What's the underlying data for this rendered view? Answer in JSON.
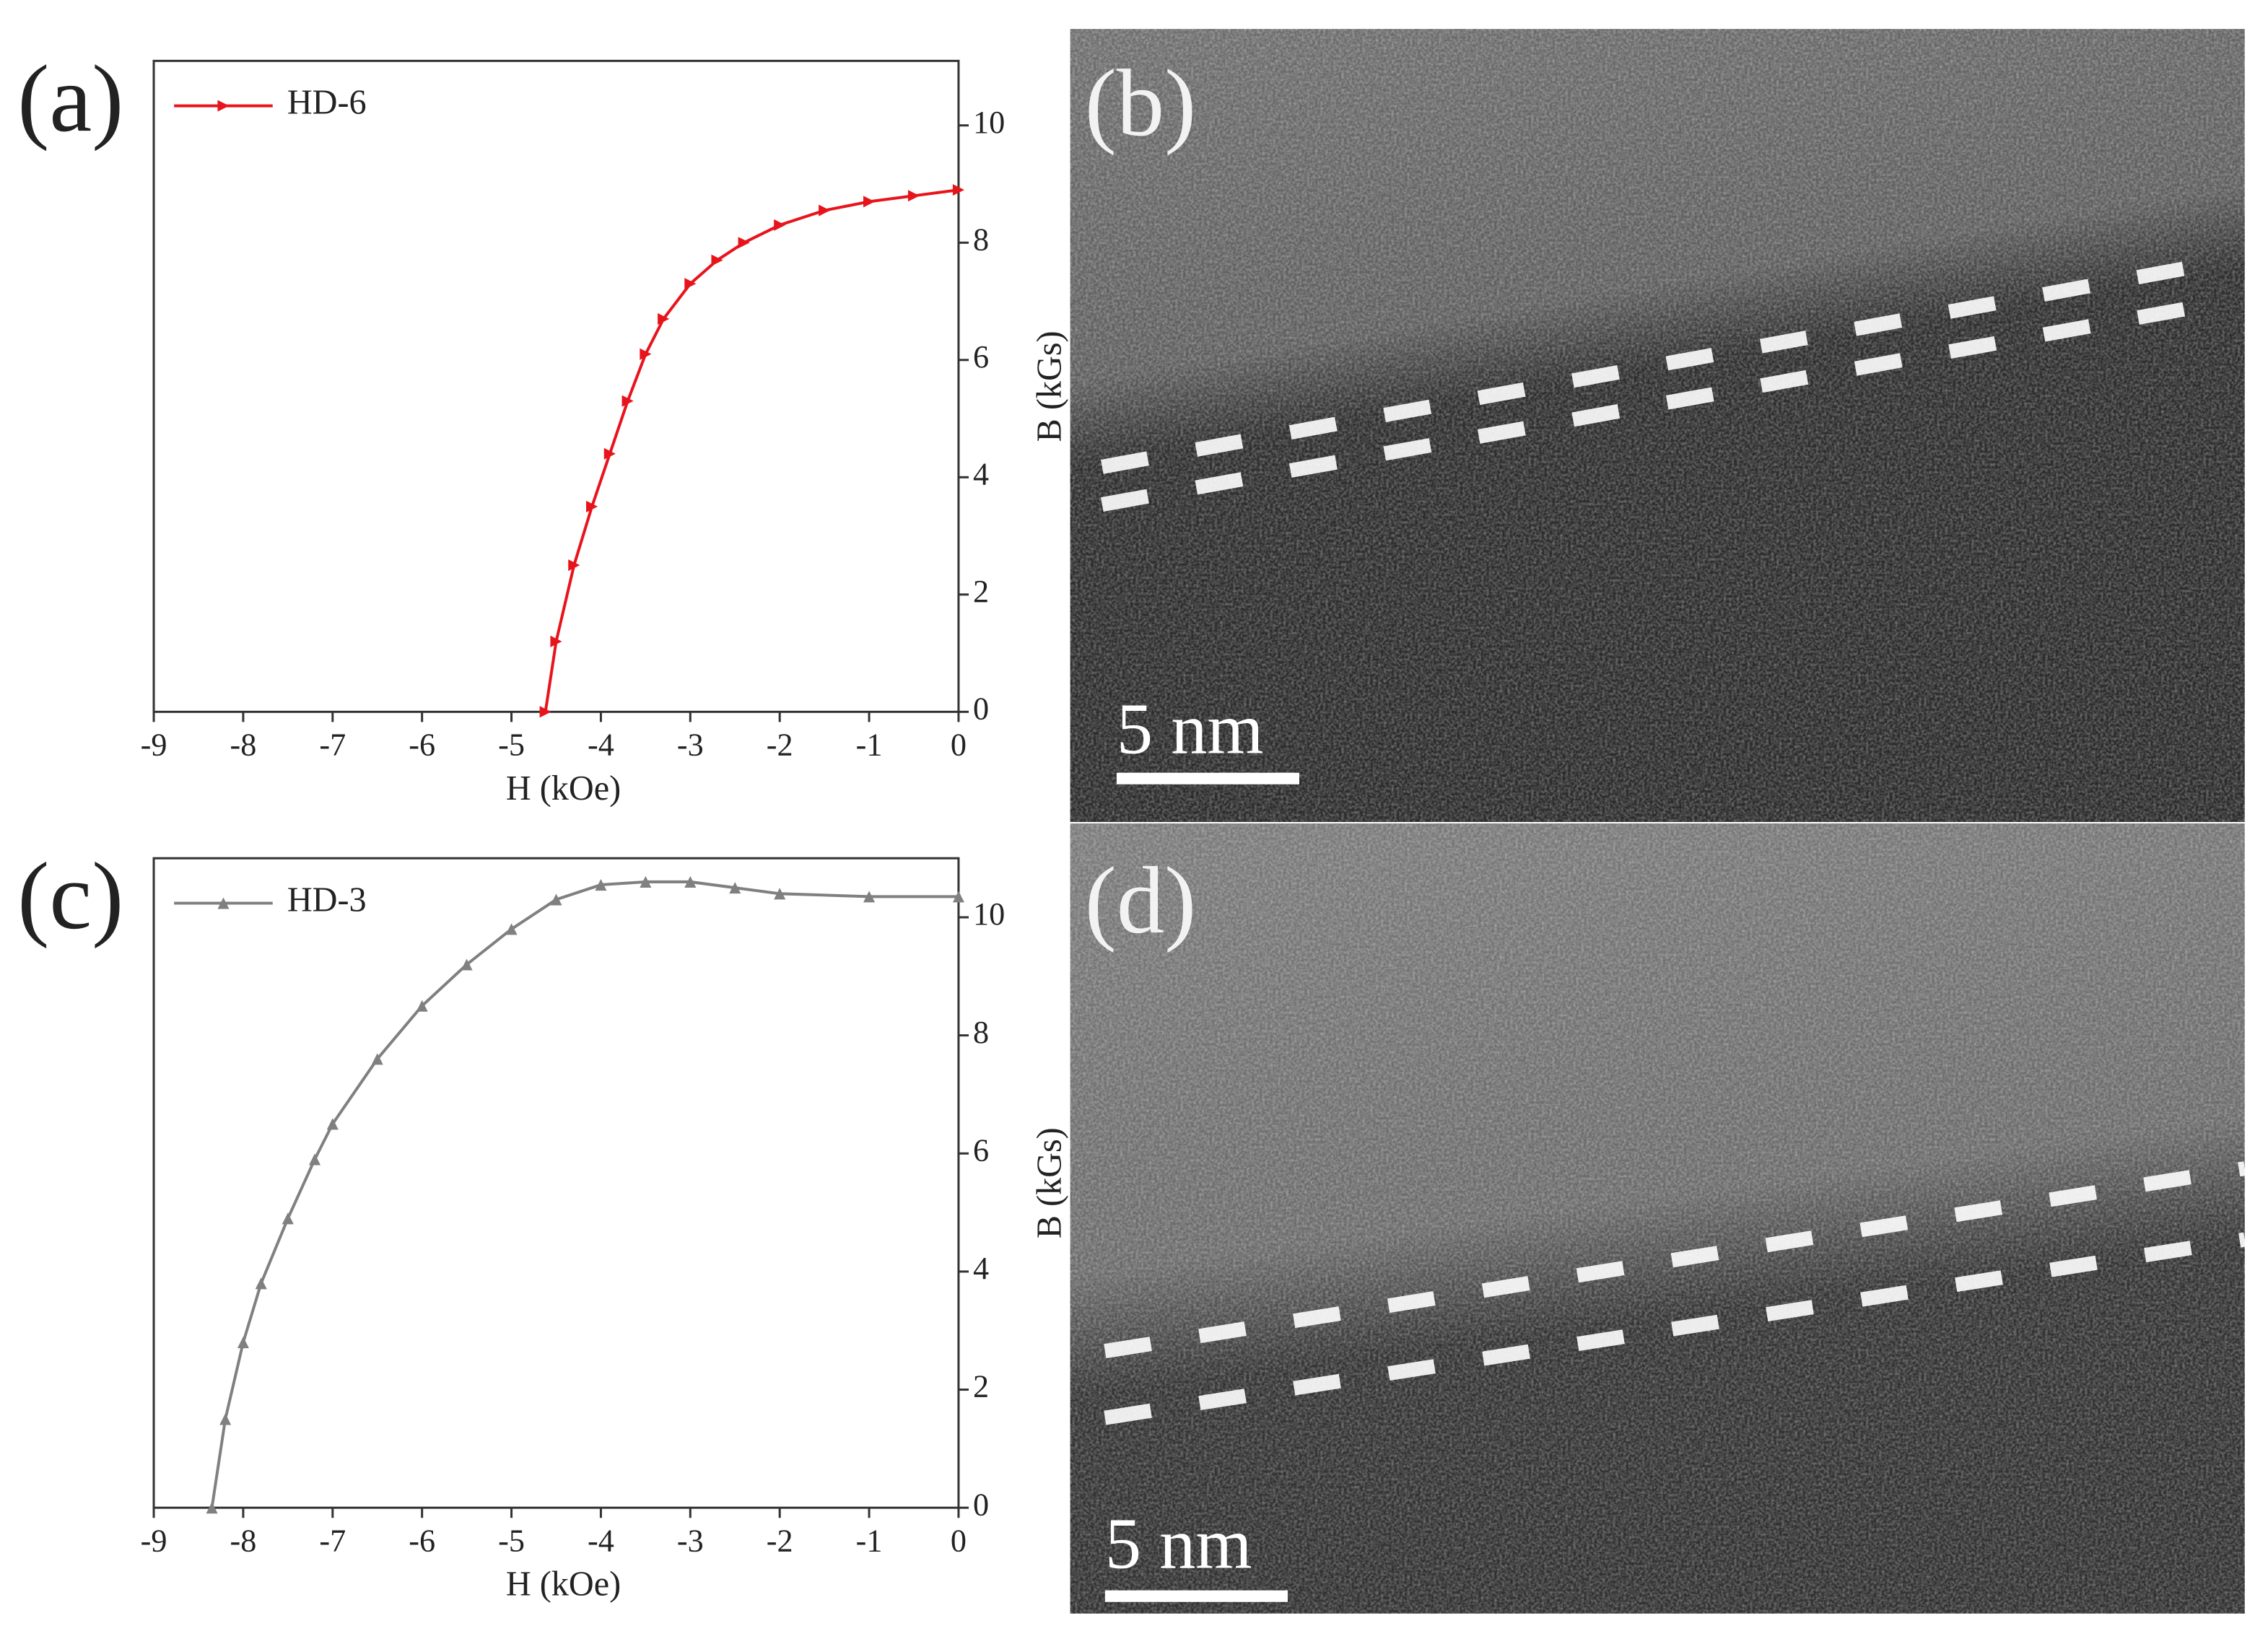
{
  "chart_data": [
    {
      "type": "line",
      "panel_label": "(a)",
      "x_label": "H (kOe)",
      "y_label": "B (kGs)",
      "xlim": [
        -9,
        0
      ],
      "ylim": [
        0,
        11.1
      ],
      "xticks": [
        -9,
        -8,
        -7,
        -6,
        -5,
        -4,
        -3,
        -2,
        -1,
        0
      ],
      "yticks": [
        0,
        2,
        4,
        6,
        8,
        10
      ],
      "series": [
        {
          "name": "HD-6",
          "color": "#e8141c",
          "marker": "triangle-right",
          "x": [
            -4.62,
            -4.5,
            -4.3,
            -4.1,
            -3.9,
            -3.7,
            -3.5,
            -3.3,
            -3.0,
            -2.7,
            -2.4,
            -2.0,
            -1.5,
            -1.0,
            -0.5,
            0
          ],
          "values": [
            0,
            1.2,
            2.5,
            3.5,
            4.4,
            5.3,
            6.1,
            6.7,
            7.3,
            7.7,
            8.0,
            8.3,
            8.55,
            8.7,
            8.8,
            8.9
          ]
        }
      ]
    },
    {
      "type": "line",
      "panel_label": "(c)",
      "x_label": "H (kOe)",
      "y_label": "B (kGs)",
      "xlim": [
        -9,
        0
      ],
      "ylim": [
        0,
        11.0
      ],
      "xticks": [
        -9,
        -8,
        -7,
        -6,
        -5,
        -4,
        -3,
        -2,
        -1,
        0
      ],
      "yticks": [
        0,
        2,
        4,
        6,
        8,
        10
      ],
      "series": [
        {
          "name": "HD-3",
          "color": "#808080",
          "marker": "triangle-up",
          "x": [
            -8.35,
            -8.2,
            -8.0,
            -7.8,
            -7.5,
            -7.2,
            -7.0,
            -6.5,
            -6.0,
            -5.5,
            -5.0,
            -4.5,
            -4.0,
            -3.5,
            -3.0,
            -2.5,
            -2.0,
            -1.0,
            0
          ],
          "values": [
            0,
            1.5,
            2.8,
            3.8,
            4.9,
            5.9,
            6.5,
            7.6,
            8.5,
            9.2,
            9.8,
            10.3,
            10.55,
            10.6,
            10.6,
            10.5,
            10.4,
            10.35,
            10.35
          ]
        }
      ]
    }
  ],
  "images": [
    {
      "panel_label": "(b)",
      "scale_label": "5 nm"
    },
    {
      "panel_label": "(d)",
      "scale_label": "5 nm"
    }
  ]
}
